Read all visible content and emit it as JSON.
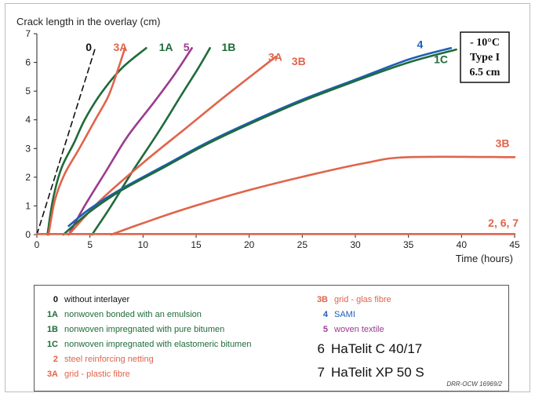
{
  "chart_data": {
    "type": "line",
    "ylabel": "Crack length in the overlay (cm)",
    "xlabel": "Time (hours)",
    "xlim": [
      0,
      45
    ],
    "ylim": [
      0,
      7
    ],
    "xticks": [
      "0",
      "5",
      "10",
      "15",
      "20",
      "25",
      "30",
      "35",
      "40",
      "45"
    ],
    "yticks": [
      "0",
      "1",
      "2",
      "3",
      "4",
      "5",
      "6",
      "7"
    ],
    "grid": false,
    "conditions": [
      "- 10°C",
      "Type I",
      "6.5 cm"
    ],
    "colors": {
      "dark": "#111111",
      "green": "#1f6b3a",
      "orange": "#e0644a",
      "purple": "#9b3a8e",
      "blue": "#1c5fb5"
    },
    "series": [
      {
        "name": "0",
        "color": "dark",
        "dashed": true,
        "points": [
          [
            0,
            0
          ],
          [
            5.5,
            6.5
          ]
        ]
      },
      {
        "name": "1A",
        "color": "green",
        "points": [
          [
            1,
            0
          ],
          [
            1.5,
            1.2
          ],
          [
            2.3,
            2.3
          ],
          [
            3.5,
            3.2
          ],
          [
            4.5,
            4.0
          ],
          [
            6.0,
            4.9
          ],
          [
            8.0,
            5.8
          ],
          [
            10.3,
            6.5
          ]
        ]
      },
      {
        "name": "3A",
        "color": "orange",
        "points": [
          [
            1.1,
            0
          ],
          [
            1.7,
            1.2
          ],
          [
            2.6,
            2.1
          ],
          [
            4.0,
            3.0
          ],
          [
            5.5,
            4.0
          ],
          [
            6.7,
            4.8
          ],
          [
            7.5,
            5.6
          ],
          [
            8.3,
            6.5
          ]
        ]
      },
      {
        "name": "5",
        "color": "purple",
        "points": [
          [
            3.0,
            0
          ],
          [
            4.5,
            1.0
          ],
          [
            6.5,
            2.2
          ],
          [
            8.5,
            3.4
          ],
          [
            11.0,
            4.6
          ],
          [
            13.0,
            5.6
          ],
          [
            14.6,
            6.5
          ]
        ]
      },
      {
        "name": "1B",
        "color": "green",
        "points": [
          [
            5.2,
            0
          ],
          [
            7.0,
            1.0
          ],
          [
            9.0,
            2.2
          ],
          [
            11.5,
            3.6
          ],
          [
            13.5,
            4.8
          ],
          [
            15.2,
            5.8
          ],
          [
            16.3,
            6.5
          ]
        ]
      },
      {
        "name": "3A",
        "color": "orange",
        "points": [
          [
            3.0,
            0
          ],
          [
            6.0,
            1.2
          ],
          [
            10.0,
            2.5
          ],
          [
            14.0,
            3.7
          ],
          [
            18.0,
            4.9
          ],
          [
            22.5,
            6.2
          ]
        ]
      },
      {
        "name": "4",
        "color": "blue",
        "points": [
          [
            3.0,
            0.3
          ],
          [
            5.0,
            0.9
          ],
          [
            8.0,
            1.6
          ],
          [
            12.0,
            2.4
          ],
          [
            16.0,
            3.2
          ],
          [
            20.0,
            3.9
          ],
          [
            25.0,
            4.7
          ],
          [
            30.0,
            5.4
          ],
          [
            35.0,
            6.1
          ],
          [
            39.0,
            6.5
          ]
        ]
      },
      {
        "name": "1C",
        "color": "green",
        "points": [
          [
            2.5,
            0
          ],
          [
            5.0,
            0.8
          ],
          [
            8.0,
            1.55
          ],
          [
            12.0,
            2.35
          ],
          [
            16.0,
            3.15
          ],
          [
            20.0,
            3.85
          ],
          [
            25.0,
            4.65
          ],
          [
            30.0,
            5.35
          ],
          [
            35.0,
            6.0
          ],
          [
            39.5,
            6.45
          ]
        ]
      },
      {
        "name": "3B",
        "color": "orange",
        "points": [
          [
            7.0,
            0
          ],
          [
            10.0,
            0.4
          ],
          [
            14.0,
            0.9
          ],
          [
            20.0,
            1.55
          ],
          [
            26.0,
            2.1
          ],
          [
            31.0,
            2.5
          ],
          [
            35.0,
            2.7
          ],
          [
            45.0,
            2.7
          ]
        ]
      },
      {
        "name": "2, 6, 7",
        "color": "orange",
        "points": [
          [
            0,
            0.02
          ],
          [
            45,
            0.02
          ]
        ]
      }
    ],
    "series_labels": [
      {
        "text": "0",
        "color": "dark",
        "x": 4.6,
        "y": 6.4
      },
      {
        "text": "3A",
        "color": "orange",
        "x": 7.2,
        "y": 6.4
      },
      {
        "text": "1A",
        "color": "green",
        "x": 11.5,
        "y": 6.4
      },
      {
        "text": "5",
        "color": "purple",
        "x": 13.8,
        "y": 6.4
      },
      {
        "text": "1B",
        "color": "green",
        "x": 17.4,
        "y": 6.4
      },
      {
        "text": "3A",
        "color": "orange",
        "x": 21.8,
        "y": 6.05
      },
      {
        "text": "3B",
        "color": "orange",
        "x": 24.0,
        "y": 5.9
      },
      {
        "text": "4",
        "color": "blue",
        "x": 35.8,
        "y": 6.5
      },
      {
        "text": "1C",
        "color": "green",
        "x": 37.4,
        "y": 5.98
      },
      {
        "text": "3B",
        "color": "orange",
        "x": 43.2,
        "y": 3.05
      },
      {
        "text": "2, 6, 7",
        "color": "orange",
        "x": 42.5,
        "y": 0.27
      }
    ]
  },
  "legend": {
    "left": [
      {
        "code": "0",
        "desc": "without interlayer",
        "color": "#111111"
      },
      {
        "code": "1A",
        "desc": "nonwoven bonded with an emulsion",
        "color": "#1f6b3a"
      },
      {
        "code": "1B",
        "desc": "nonwoven impregnated with pure bitumen",
        "color": "#1f6b3a"
      },
      {
        "code": "1C",
        "desc": "nonwoven impregnated with elastomeric bitumen",
        "color": "#1f6b3a"
      },
      {
        "code": "2",
        "desc": "steel reinforcing netting",
        "color": "#e0644a"
      },
      {
        "code": "3A",
        "desc": "grid - plastic fibre",
        "color": "#e0644a"
      }
    ],
    "right_top": [
      {
        "code": "3B",
        "desc": "grid - glas fibre",
        "color": "#e0644a"
      },
      {
        "code": "4",
        "desc": "SAMI",
        "color": "#1c5fb5"
      },
      {
        "code": "5",
        "desc": "woven textile",
        "color": "#9b3a8e"
      }
    ],
    "right_big": [
      {
        "code": "6",
        "desc": "HaTelit C 40/17"
      },
      {
        "code": "7",
        "desc": "HaTelit XP 50 S"
      }
    ]
  },
  "source_note": "DRR-OCW 16969/2"
}
